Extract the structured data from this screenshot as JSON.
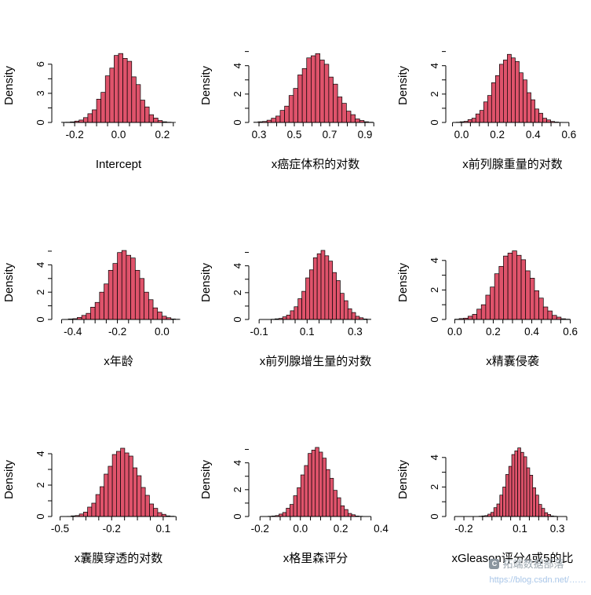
{
  "style": {
    "bar_fill": "#DF536B",
    "bar_stroke": "#000000",
    "axis_color": "#000000",
    "watermark_gray": "#9aa5ad",
    "watermark_blue": "#a9c6e8"
  },
  "watermark": {
    "icon": "C",
    "line1": "拓端数据部落",
    "line2": "https://blog.csdn.net/……"
  },
  "chart_data": [
    {
      "type": "bar",
      "subtype": "histogram",
      "title": "Intercept",
      "ylabel": "Density",
      "xlim": [
        -0.29,
        0.29
      ],
      "xtick_start": -0.25,
      "xtick_step": 0.05,
      "xtick_end": 0.25,
      "xlabels": [
        [
          -0.2,
          "-0.2"
        ],
        [
          0,
          "0.0"
        ],
        [
          0.2,
          "0.2"
        ]
      ],
      "yticks": [
        [
          0,
          "0"
        ],
        [
          3,
          "3"
        ],
        [
          6,
          "6"
        ]
      ],
      "yminor": [
        1.5,
        4.5
      ],
      "ymax": 7.6,
      "bar_x0": -0.26,
      "bar_w": 0.02,
      "heights": [
        0.02,
        0.03,
        0.06,
        0.14,
        0.25,
        0.5,
        0.9,
        1.3,
        2.4,
        3.1,
        4.8,
        5.6,
        6.9,
        7.1,
        6.6,
        6.3,
        4.7,
        3.9,
        2.3,
        1.6,
        0.8,
        0.45,
        0.2,
        0.07,
        0.03,
        0.01
      ]
    },
    {
      "type": "bar",
      "subtype": "histogram",
      "title": "x癌症体积的对数",
      "ylabel": "Density",
      "xlim": [
        0.26,
        0.98
      ],
      "xtick_start": 0.3,
      "xtick_step": 0.05,
      "xtick_end": 0.95,
      "xlabels": [
        [
          0.3,
          "0.3"
        ],
        [
          0.5,
          "0.5"
        ],
        [
          0.7,
          "0.7"
        ],
        [
          0.9,
          "0.9"
        ]
      ],
      "yticks": [
        [
          0,
          "0"
        ],
        [
          2,
          "2"
        ],
        [
          4,
          "4"
        ]
      ],
      "yminor": [
        1,
        3,
        5
      ],
      "ymax": 5.2,
      "bar_x0": 0.27,
      "bar_w": 0.025,
      "heights": [
        0.02,
        0.05,
        0.07,
        0.16,
        0.3,
        0.45,
        0.85,
        1.15,
        1.9,
        2.4,
        3.35,
        3.8,
        4.55,
        4.7,
        4.85,
        4.4,
        4.1,
        3.2,
        2.7,
        1.8,
        1.35,
        0.8,
        0.55,
        0.25,
        0.14,
        0.05,
        0.02
      ]
    },
    {
      "type": "bar",
      "subtype": "histogram",
      "title": "x前列腺重量的对数",
      "ylabel": "Density",
      "xlim": [
        -0.07,
        0.64
      ],
      "xtick_start": -0.05,
      "xtick_step": 0.05,
      "xtick_end": 0.6,
      "xlabels": [
        [
          0,
          "0.0"
        ],
        [
          0.2,
          "0.2"
        ],
        [
          0.4,
          "0.4"
        ],
        [
          0.6,
          "0.6"
        ]
      ],
      "yticks": [
        [
          0,
          "0"
        ],
        [
          2,
          "2"
        ],
        [
          4,
          "4"
        ]
      ],
      "yminor": [
        1,
        3,
        5
      ],
      "ymax": 5.2,
      "bar_x0": -0.03,
      "bar_w": 0.022,
      "heights": [
        0.02,
        0.05,
        0.08,
        0.2,
        0.3,
        0.6,
        0.85,
        1.45,
        1.9,
        2.8,
        3.3,
        4.1,
        4.4,
        4.8,
        4.55,
        4.3,
        3.5,
        3.0,
        2.1,
        1.6,
        0.95,
        0.65,
        0.3,
        0.18,
        0.07,
        0.03,
        0.01
      ]
    },
    {
      "type": "bar",
      "subtype": "histogram",
      "title": "x年龄",
      "ylabel": "Density",
      "xlim": [
        -0.48,
        0.09
      ],
      "xtick_start": -0.45,
      "xtick_step": 0.05,
      "xtick_end": 0.05,
      "xlabels": [
        [
          -0.4,
          "-0.4"
        ],
        [
          -0.2,
          "-0.2"
        ],
        [
          0,
          "0.0"
        ]
      ],
      "yticks": [
        [
          0,
          "0"
        ],
        [
          2,
          "2"
        ],
        [
          4,
          "4"
        ]
      ],
      "yminor": [
        1,
        3,
        5
      ],
      "ymax": 5.4,
      "bar_x0": -0.44,
      "bar_w": 0.02,
      "heights": [
        0.01,
        0.04,
        0.06,
        0.15,
        0.3,
        0.45,
        0.9,
        1.25,
        2.0,
        2.6,
        3.6,
        4.1,
        4.9,
        5.05,
        4.7,
        4.5,
        3.6,
        3.0,
        2.0,
        1.45,
        0.85,
        0.55,
        0.24,
        0.13,
        0.04,
        0.02
      ]
    },
    {
      "type": "bar",
      "subtype": "histogram",
      "title": "x前列腺增生量的对数",
      "ylabel": "Density",
      "xlim": [
        -0.13,
        0.4
      ],
      "xtick_start": -0.1,
      "xtick_step": 0.05,
      "xtick_end": 0.35,
      "xlabels": [
        [
          -0.1,
          "-0.1"
        ],
        [
          0.1,
          "0.1"
        ],
        [
          0.3,
          "0.3"
        ]
      ],
      "yticks": [
        [
          0,
          "0"
        ],
        [
          2,
          "2"
        ],
        [
          4,
          "4"
        ]
      ],
      "yminor": [
        1,
        3,
        5
      ],
      "ymax": 5.5,
      "bar_x0": -0.05,
      "bar_w": 0.016,
      "heights": [
        0.02,
        0.05,
        0.08,
        0.2,
        0.33,
        0.65,
        0.95,
        1.55,
        2.1,
        3.1,
        3.7,
        4.6,
        4.9,
        5.15,
        4.75,
        4.35,
        3.5,
        2.9,
        1.95,
        1.4,
        0.8,
        0.52,
        0.24,
        0.13,
        0.04,
        0.02
      ]
    },
    {
      "type": "bar",
      "subtype": "histogram",
      "title": "x精囊侵袭",
      "ylabel": "Density",
      "xlim": [
        -0.03,
        0.63
      ],
      "xtick_start": 0.0,
      "xtick_step": 0.05,
      "xtick_end": 0.6,
      "xlabels": [
        [
          0,
          "0.0"
        ],
        [
          0.2,
          "0.2"
        ],
        [
          0.4,
          "0.4"
        ],
        [
          0.6,
          "0.6"
        ]
      ],
      "yticks": [
        [
          0,
          "0"
        ],
        [
          2,
          "2"
        ],
        [
          4,
          "4"
        ]
      ],
      "yminor": [
        1,
        3
      ],
      "ymax": 5.0,
      "bar_x0": 0.0,
      "bar_w": 0.023,
      "heights": [
        0.02,
        0.06,
        0.09,
        0.22,
        0.35,
        0.7,
        1.0,
        1.65,
        2.2,
        3.1,
        3.6,
        4.3,
        4.5,
        4.65,
        4.35,
        4.05,
        3.3,
        2.8,
        1.95,
        1.45,
        0.85,
        0.58,
        0.28,
        0.16,
        0.05,
        0.02
      ]
    },
    {
      "type": "bar",
      "subtype": "histogram",
      "title": "x囊膜穿透的对数",
      "ylabel": "Density",
      "xlim": [
        -0.53,
        0.21
      ],
      "xtick_start": -0.5,
      "xtick_step": 0.075,
      "xtick_end": 0.175,
      "xlabels": [
        [
          -0.5,
          "-0.5"
        ],
        [
          -0.2,
          "-0.2"
        ],
        [
          0.1,
          "0.1"
        ]
      ],
      "yticks": [
        [
          0,
          "0"
        ],
        [
          2,
          "2"
        ],
        [
          4,
          "4"
        ]
      ],
      "yminor": [
        1,
        3
      ],
      "ymax": 4.7,
      "bar_x0": -0.46,
      "bar_w": 0.024,
      "heights": [
        0.01,
        0.04,
        0.06,
        0.16,
        0.28,
        0.6,
        0.85,
        1.4,
        1.9,
        2.7,
        3.2,
        3.95,
        4.15,
        4.35,
        4.05,
        3.85,
        3.1,
        2.6,
        1.85,
        1.35,
        0.8,
        0.52,
        0.25,
        0.14,
        0.04,
        0.02
      ]
    },
    {
      "type": "bar",
      "subtype": "histogram",
      "title": "x格里森评分",
      "ylabel": "Density",
      "xlim": [
        -0.24,
        0.39
      ],
      "xtick_start": -0.2,
      "xtick_step": 0.05,
      "xtick_end": 0.35,
      "xlabels": [
        [
          -0.2,
          "-0.2"
        ],
        [
          0,
          "0.0"
        ],
        [
          0.2,
          "0.2"
        ],
        [
          0.4,
          "0.4"
        ]
      ],
      "yticks": [
        [
          0,
          "0"
        ],
        [
          2,
          "2"
        ],
        [
          4,
          "4"
        ]
      ],
      "yminor": [
        1,
        3,
        5
      ],
      "ymax": 5.5,
      "bar_x0": -0.16,
      "bar_w": 0.018,
      "heights": [
        0.02,
        0.04,
        0.07,
        0.18,
        0.3,
        0.62,
        0.9,
        1.55,
        2.15,
        3.1,
        3.8,
        4.7,
        4.95,
        5.15,
        4.8,
        4.35,
        3.5,
        2.85,
        1.95,
        1.4,
        0.8,
        0.52,
        0.23,
        0.13,
        0.04,
        0.02
      ]
    },
    {
      "type": "bar",
      "subtype": "histogram",
      "title": "xGleason评分4或5的比",
      "ylabel": "Density",
      "xlim": [
        -0.28,
        0.4
      ],
      "xtick_start": -0.25,
      "xtick_step": 0.05,
      "xtick_end": 0.35,
      "xlabels": [
        [
          -0.2,
          "-0.2"
        ],
        [
          0.1,
          "0.1"
        ],
        [
          0.3,
          "0.3"
        ]
      ],
      "yticks": [
        [
          0,
          "0"
        ],
        [
          2,
          "2"
        ],
        [
          4,
          "4"
        ]
      ],
      "yminor": [
        1,
        3
      ],
      "ymax": 5.0,
      "bar_x0": -0.12,
      "bar_w": 0.016,
      "heights": [
        0.02,
        0.04,
        0.06,
        0.16,
        0.28,
        0.6,
        0.85,
        1.45,
        2.0,
        2.85,
        3.4,
        4.2,
        4.45,
        4.65,
        4.35,
        4.05,
        3.3,
        2.8,
        1.95,
        1.45,
        0.82,
        0.55,
        0.26,
        0.14,
        0.04,
        0.02
      ]
    }
  ]
}
